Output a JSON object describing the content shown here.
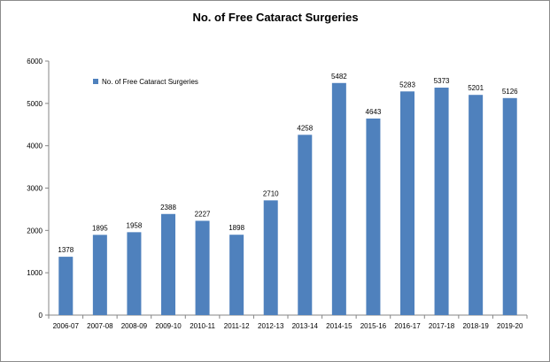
{
  "chart_data": {
    "type": "bar",
    "title": "No. of Free Cataract Surgeries",
    "xlabel": "",
    "ylabel": "",
    "categories": [
      "2006-07",
      "2007-08",
      "2008-09",
      "2009-10",
      "2010-11",
      "2011-12",
      "2012-13",
      "2013-14",
      "2014-15",
      "2015-16",
      "2016-17",
      "2017-18",
      "2018-19",
      "2019-20"
    ],
    "series": [
      {
        "name": "No. of Free Cataract Surgeries",
        "color": "#4f81bd",
        "values": [
          1378,
          1895,
          1958,
          2388,
          2227,
          1898,
          2710,
          4258,
          5482,
          4643,
          5283,
          5373,
          5201,
          5126
        ]
      }
    ],
    "ylim": [
      0,
      6000
    ],
    "yticks": [
      0,
      1000,
      2000,
      3000,
      4000,
      5000,
      6000
    ],
    "grid": false,
    "legend_position": "top-left"
  }
}
